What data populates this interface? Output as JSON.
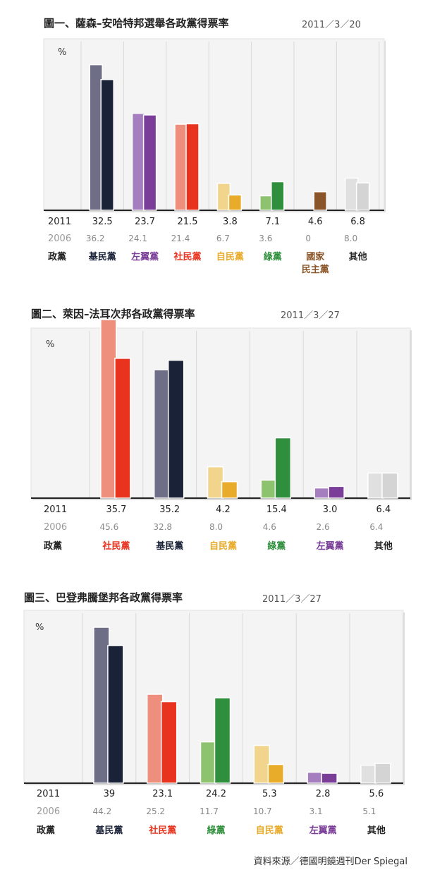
{
  "chart_data": [
    {
      "type": "bar",
      "title": "圖一、薩森–安哈特邦選舉各政黨得票率",
      "date": "2011／3／20",
      "unit": "%",
      "row_labels": [
        "2011",
        "2006",
        "政黨"
      ],
      "categories": [
        "基民黨",
        "左翼黨",
        "社民黨",
        "自民黨",
        "綠黨",
        "國家民主黨",
        "其他"
      ],
      "category_colors": [
        "#1a2238",
        "#7a3e98",
        "#e8341f",
        "#e9ab2a",
        "#2f8f3c",
        "#8a5528",
        "#d4d4d4"
      ],
      "category_light_colors": [
        "#6e6e86",
        "#a57ec0",
        "#ee8f7e",
        "#f2d58d",
        "#8dc26f",
        "#b48c6c",
        "#e0e0e0"
      ],
      "series": [
        {
          "name": "2011",
          "values": [
            32.5,
            23.7,
            21.5,
            3.8,
            7.1,
            4.6,
            6.8
          ]
        },
        {
          "name": "2006",
          "values": [
            36.2,
            24.1,
            21.4,
            6.7,
            3.6,
            0,
            8.0
          ]
        }
      ],
      "labels_2011": [
        "32.5",
        "23.7",
        "21.5",
        "3.8",
        "7.1",
        "4.6",
        "6.8"
      ],
      "labels_2006": [
        "36.2",
        "24.1",
        "21.4",
        "6.7",
        "3.6",
        "0",
        "8.0"
      ]
    },
    {
      "type": "bar",
      "title": "圖二、萊因–法耳次邦各政黨得票率",
      "date": "2011／3／27",
      "unit": "%",
      "row_labels": [
        "2011",
        "2006",
        "政黨"
      ],
      "categories": [
        "社民黨",
        "基民黨",
        "自民黨",
        "綠黨",
        "左翼黨",
        "其他"
      ],
      "category_colors": [
        "#e8341f",
        "#1a2238",
        "#e9ab2a",
        "#2f8f3c",
        "#7a3e98",
        "#d4d4d4"
      ],
      "category_light_colors": [
        "#ee8f7e",
        "#6e6e86",
        "#f2d58d",
        "#8dc26f",
        "#a57ec0",
        "#e0e0e0"
      ],
      "series": [
        {
          "name": "2011",
          "values": [
            35.7,
            35.2,
            4.2,
            15.4,
            3.0,
            6.4
          ]
        },
        {
          "name": "2006",
          "values": [
            45.6,
            32.8,
            8.0,
            4.6,
            2.6,
            6.4
          ]
        }
      ],
      "labels_2011": [
        "35.7",
        "35.2",
        "4.2",
        "15.4",
        "3.0",
        "6.4"
      ],
      "labels_2006": [
        "45.6",
        "32.8",
        "8.0",
        "4.6",
        "2.6",
        "6.4"
      ]
    },
    {
      "type": "bar",
      "title": "圖三、巴登弗騰堡邦各政黨得票率",
      "date": "2011／3／27",
      "unit": "%",
      "row_labels": [
        "2011",
        "2006",
        "政黨"
      ],
      "categories": [
        "基民黨",
        "社民黨",
        "綠黨",
        "自民黨",
        "左翼黨",
        "其他"
      ],
      "category_colors": [
        "#1a2238",
        "#e8341f",
        "#2f8f3c",
        "#e9ab2a",
        "#7a3e98",
        "#d4d4d4"
      ],
      "category_light_colors": [
        "#6e6e86",
        "#ee8f7e",
        "#8dc26f",
        "#f2d58d",
        "#a57ec0",
        "#e0e0e0"
      ],
      "series": [
        {
          "name": "2011",
          "values": [
            39,
            23.1,
            24.2,
            5.3,
            2.8,
            5.6
          ]
        },
        {
          "name": "2006",
          "values": [
            44.2,
            25.2,
            11.7,
            10.7,
            3.1,
            5.1
          ]
        }
      ],
      "labels_2011": [
        "39",
        "23.1",
        "24.2",
        "5.3",
        "2.8",
        "5.6"
      ],
      "labels_2006": [
        "44.2",
        "25.2",
        "11.7",
        "10.7",
        "3.1",
        "5.1"
      ]
    }
  ],
  "source": "資料來源／德國明鏡週刊Der Spiegal"
}
